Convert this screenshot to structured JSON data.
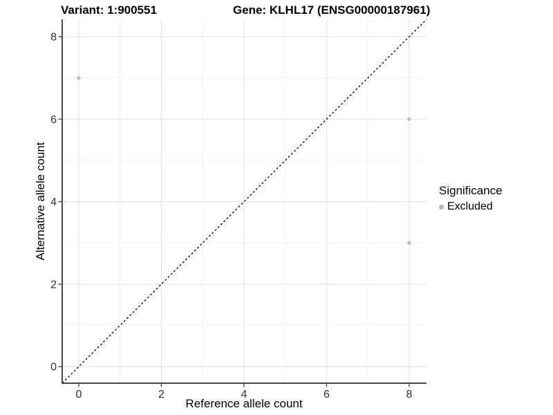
{
  "chart_data": {
    "type": "scatter",
    "titles": {
      "left": "Variant: 1:900551",
      "right": "Gene: KLHL17 (ENSG00000187961)"
    },
    "xlabel": "Reference allele count",
    "ylabel": "Alternative allele count",
    "xlim": [
      -0.4,
      8.42
    ],
    "ylim": [
      -0.4,
      8.42
    ],
    "x_ticks": [
      0,
      2,
      4,
      6,
      8
    ],
    "y_ticks": [
      0,
      2,
      4,
      6,
      8
    ],
    "x_minor_ticks": [
      1,
      3,
      5,
      7
    ],
    "y_minor_ticks": [
      1,
      3,
      5,
      7
    ],
    "grid": {
      "visible": true,
      "major_color": "#e4e4e4",
      "minor_color": "#f1f1f1"
    },
    "axis": {
      "line_color": "#474747",
      "tick_color": "#474747",
      "tick_label_color": "#303030"
    },
    "reference_line": {
      "type": "identity y=x",
      "style": "dashed",
      "color": "#000000"
    },
    "series": [
      {
        "name": "Excluded",
        "color": "#bdbdbd",
        "points": [
          [
            0,
            7
          ],
          [
            8,
            6
          ],
          [
            8,
            3
          ]
        ]
      }
    ],
    "legend": {
      "title": "Significance",
      "position": "right",
      "items": [
        {
          "label": "Excluded",
          "color": "#b8b8b8"
        }
      ]
    }
  }
}
